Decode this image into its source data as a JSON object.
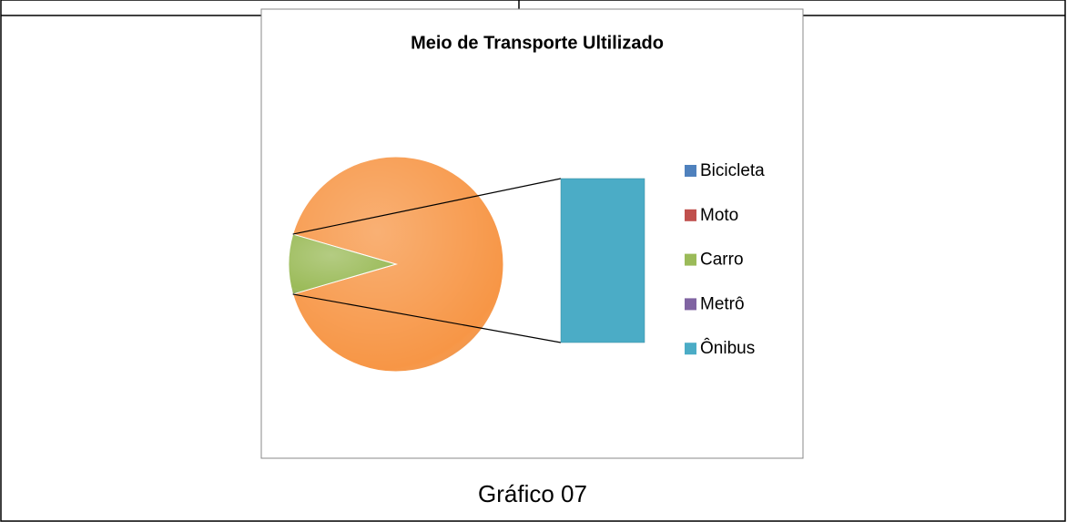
{
  "chart_data": {
    "type": "bar_of_pie",
    "title": "Meio de Transporte Ultilizado",
    "categories": [
      "Bicicleta",
      "Moto",
      "Carro",
      "Metrô",
      "Ônibus"
    ],
    "values": [
      0,
      0,
      9,
      0,
      91
    ],
    "colors": [
      "#4f81bd",
      "#c0504d",
      "#9bbb59",
      "#8064a2",
      "#4bacc6"
    ],
    "other_color": "#f79646",
    "secondary_count": 2,
    "legend": "right"
  },
  "caption": "Gráfico 07"
}
